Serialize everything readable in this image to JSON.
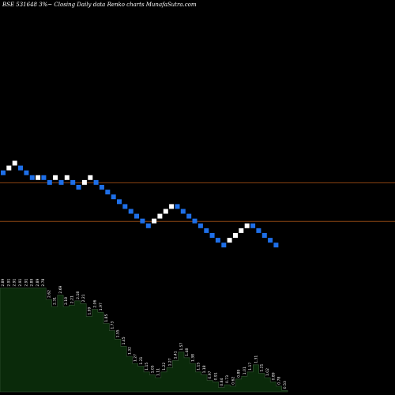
{
  "chart_data": {
    "type": "renko",
    "title": "BSE 531648  3%~  Closing Daily data  Renko  charts MunafaSutra.com",
    "colors": {
      "background": "#000000",
      "up_brick": "#ffffff",
      "down_brick": "#1e6fe8",
      "level_line": "#8b4513",
      "volume_fill": "#0a2a0a",
      "volume_stroke": "#3a5a3a",
      "volume_label": "#ffffff"
    },
    "level_lines": [
      1,
      -7
    ],
    "bricks": [
      {
        "dir": "down",
        "level": 3
      },
      {
        "dir": "up",
        "level": 4
      },
      {
        "dir": "up",
        "level": 5
      },
      {
        "dir": "down",
        "level": 4
      },
      {
        "dir": "down",
        "level": 3
      },
      {
        "dir": "down",
        "level": 2
      },
      {
        "dir": "up",
        "level": 2
      },
      {
        "dir": "down",
        "level": 2
      },
      {
        "dir": "down",
        "level": 1
      },
      {
        "dir": "up",
        "level": 2
      },
      {
        "dir": "down",
        "level": 1
      },
      {
        "dir": "up",
        "level": 2
      },
      {
        "dir": "down",
        "level": 1
      },
      {
        "dir": "down",
        "level": 0
      },
      {
        "dir": "up",
        "level": 1
      },
      {
        "dir": "up",
        "level": 2
      },
      {
        "dir": "down",
        "level": 1
      },
      {
        "dir": "down",
        "level": 0
      },
      {
        "dir": "down",
        "level": -1
      },
      {
        "dir": "down",
        "level": -2
      },
      {
        "dir": "down",
        "level": -3
      },
      {
        "dir": "down",
        "level": -4
      },
      {
        "dir": "down",
        "level": -5
      },
      {
        "dir": "down",
        "level": -6
      },
      {
        "dir": "down",
        "level": -7
      },
      {
        "dir": "down",
        "level": -8
      },
      {
        "dir": "up",
        "level": -7
      },
      {
        "dir": "up",
        "level": -6
      },
      {
        "dir": "up",
        "level": -5
      },
      {
        "dir": "up",
        "level": -4
      },
      {
        "dir": "down",
        "level": -4
      },
      {
        "dir": "down",
        "level": -5
      },
      {
        "dir": "down",
        "level": -6
      },
      {
        "dir": "down",
        "level": -7
      },
      {
        "dir": "down",
        "level": -8
      },
      {
        "dir": "down",
        "level": -9
      },
      {
        "dir": "down",
        "level": -10
      },
      {
        "dir": "down",
        "level": -11
      },
      {
        "dir": "down",
        "level": -12
      },
      {
        "dir": "up",
        "level": -11
      },
      {
        "dir": "up",
        "level": -10
      },
      {
        "dir": "up",
        "level": -9
      },
      {
        "dir": "up",
        "level": -8
      },
      {
        "dir": "down",
        "level": -8
      },
      {
        "dir": "down",
        "level": -9
      },
      {
        "dir": "down",
        "level": -10
      },
      {
        "dir": "down",
        "level": -11
      },
      {
        "dir": "down",
        "level": -12
      }
    ],
    "volume": {
      "values": [
        0.365,
        0.365,
        0.365,
        0.365,
        0.365,
        0.365,
        0.365,
        0.365,
        0.325,
        0.3,
        0.34,
        0.3,
        0.305,
        0.32,
        0.31,
        0.265,
        0.29,
        0.28,
        0.24,
        0.215,
        0.185,
        0.16,
        0.125,
        0.1,
        0.09,
        0.07,
        0.06,
        0.05,
        0.07,
        0.085,
        0.11,
        0.14,
        0.12,
        0.1,
        0.07,
        0.06,
        0.04,
        0.035,
        0.015,
        0.025,
        0.02,
        0.045,
        0.055,
        0.07,
        0.095,
        0.065,
        0.05,
        0.035,
        0.02,
        0.005
      ],
      "labels": [
        "2.89",
        "2.91",
        "2.91",
        "2.91",
        "2.91",
        "2.89",
        "2.89",
        "2.78",
        "2.62",
        "2.31",
        "2.69",
        "2.18",
        "2.21",
        "2.18",
        "2.21",
        "1.99",
        "2.06",
        "1.97",
        "1.85",
        "1.73",
        "1.55",
        "1.45",
        "1.32",
        "1.27",
        "1.21",
        "1.15",
        "1.05",
        "1.11",
        "1.22",
        "1.27",
        "1.41",
        "1.57",
        "1.48",
        "1.38",
        "1.15",
        "1.18",
        "0.97",
        "0.91",
        "0.84",
        "0.73",
        "0.62",
        "0.89",
        "1.01",
        "1.17",
        "1.31",
        "1.21",
        "1.02",
        "0.89",
        "0.78",
        "0.53"
      ]
    }
  }
}
